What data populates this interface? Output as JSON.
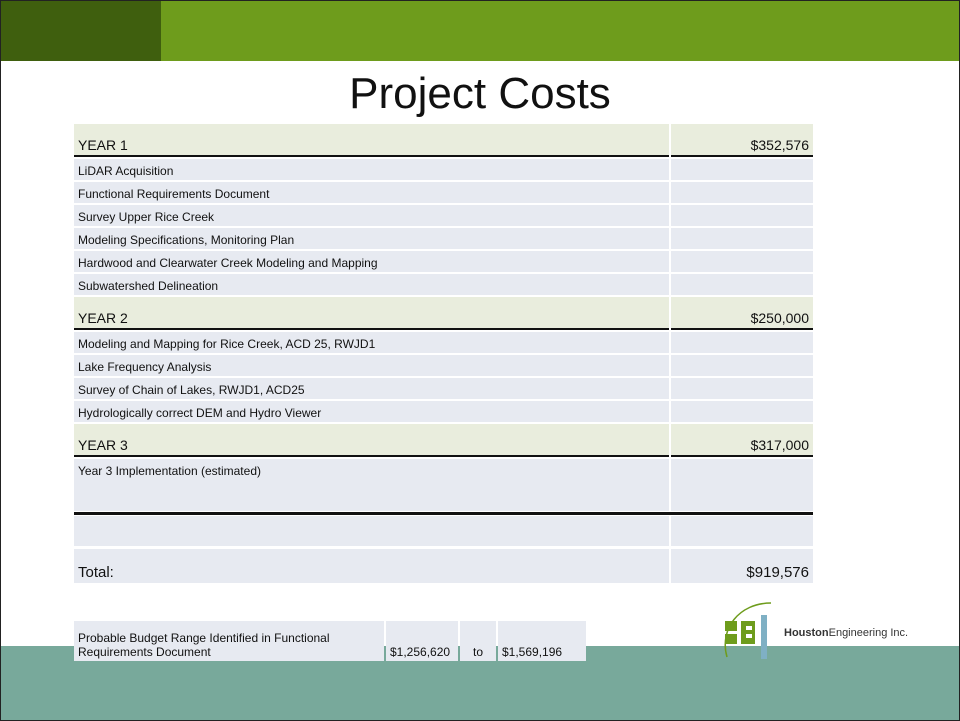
{
  "title": "Project Costs",
  "sections": [
    {
      "label": "YEAR 1",
      "amount": "$352,576",
      "items": [
        "LiDAR Acquisition",
        "Functional Requirements Document",
        "Survey Upper Rice Creek",
        "Modeling Specifications, Monitoring Plan",
        "Hardwood and Clearwater Creek Modeling and Mapping",
        "Subwatershed Delineation"
      ]
    },
    {
      "label": "YEAR 2",
      "amount": "$250,000",
      "items": [
        "Modeling and Mapping for Rice Creek, ACD 25, RWJD1",
        "Lake Frequency Analysis",
        "Survey of Chain of Lakes, RWJD1, ACD25",
        "Hydrologically correct DEM and Hydro Viewer"
      ]
    },
    {
      "label": "YEAR 3",
      "amount": "$317,000",
      "items": [
        "Year 3 Implementation (estimated)"
      ]
    }
  ],
  "total": {
    "label": "Total:",
    "amount": "$919,576"
  },
  "budget": {
    "label": "Probable Budget Range Identified in Functional Requirements Document",
    "low": "$1,256,620",
    "to": "to",
    "high": "$1,569,196"
  },
  "logo": {
    "bold": "Houston",
    "rest": "Engineering Inc."
  }
}
